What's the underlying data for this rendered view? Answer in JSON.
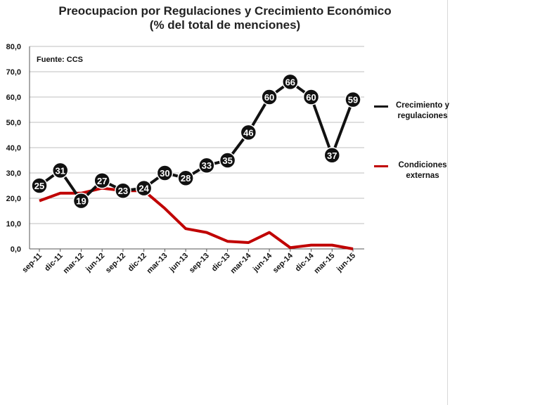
{
  "title_line1": "Preocupacion por Regulaciones  y Crecimiento Económico",
  "title_line2": "(% del total de menciones)",
  "source": "Fuente: CCS",
  "chart_data": {
    "type": "line",
    "title": "Preocupacion por Regulaciones  y Crecimiento Económico (% del total de menciones)",
    "x": [
      "sep-11",
      "dic-11",
      "mar-12",
      "jun-12",
      "sep-12",
      "dic-12",
      "mar-13",
      "jun-13",
      "sep-13",
      "dic-13",
      "mar-14",
      "jun-14",
      "sep-14",
      "dic-14",
      "mar-15",
      "jun-15"
    ],
    "y_ticks": [
      "0,0",
      "10,0",
      "20,0",
      "30,0",
      "40,0",
      "50,0",
      "60,0",
      "70,0",
      "80,0"
    ],
    "ylim": [
      0,
      80
    ],
    "grid": true,
    "legend": "right",
    "series": [
      {
        "name": "Crecimiento y regulaciones",
        "color": "#111111",
        "values": [
          25,
          31,
          19,
          27,
          23,
          24,
          30,
          28,
          33,
          35,
          46,
          60,
          66,
          60,
          37,
          59
        ],
        "labels": [
          "25",
          "31",
          "19",
          "27",
          "23",
          "24",
          "30",
          "28",
          "33",
          "35",
          "46",
          "60",
          "66",
          "60",
          "37",
          "59"
        ]
      },
      {
        "name": "Condiciones externas",
        "color": "#c00000",
        "values": [
          19,
          22,
          22,
          24,
          23,
          23,
          16,
          8,
          6.5,
          3,
          2.5,
          6.5,
          0.5,
          1.5,
          1.5,
          0
        ]
      }
    ]
  }
}
